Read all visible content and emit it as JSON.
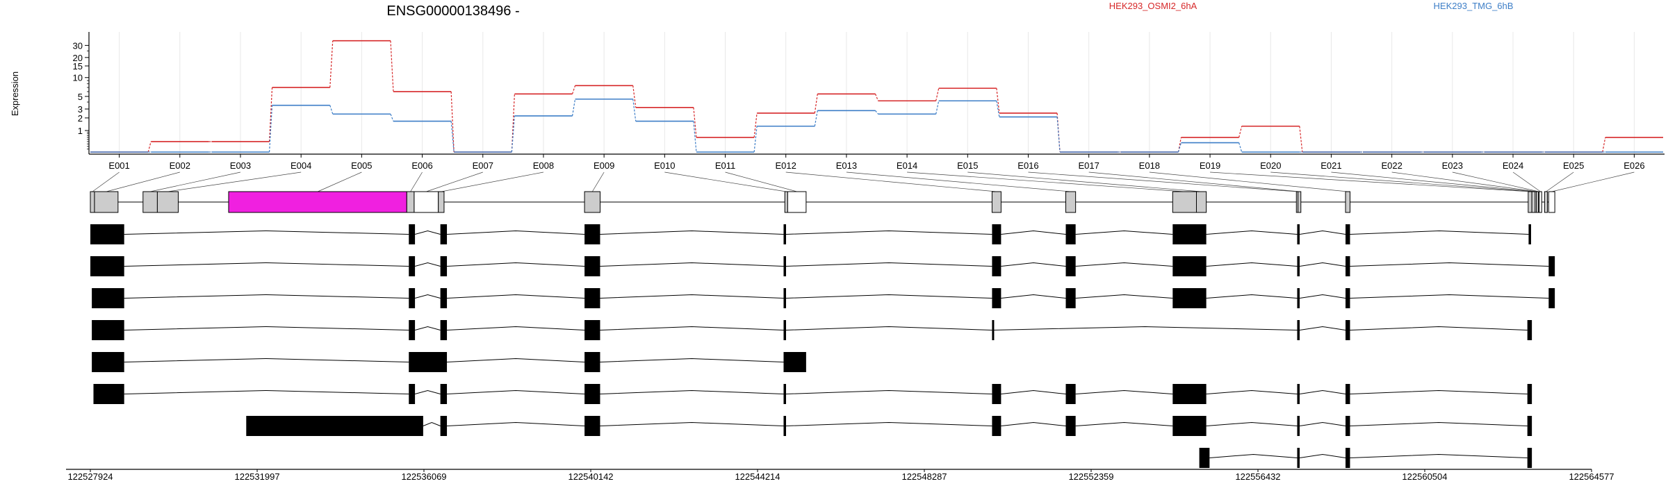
{
  "chart_data": {
    "type": "line",
    "title": "ENSG00000138496 -",
    "ylabel": "Expression",
    "y_scale": "log",
    "y_ticks": [
      "1",
      "2",
      "3",
      "5",
      "10",
      "15",
      "20",
      "30"
    ],
    "grid": true,
    "legend": "top-right",
    "series": [
      {
        "name": "HEK293_OSMI2_6hA",
        "color": "#d62728",
        "values": [
          0,
          0.4,
          0.4,
          7,
          35,
          6,
          0,
          5.5,
          7.5,
          3.2,
          0.6,
          2.5,
          5.5,
          4.2,
          6.8,
          2.5,
          0,
          0,
          0.6,
          1.3,
          0,
          0,
          0,
          0,
          0,
          0.6
        ]
      },
      {
        "name": "HEK293_TMG_6hB",
        "color": "#3d7ec7",
        "values": [
          0,
          0,
          0,
          3.5,
          2.4,
          1.7,
          0,
          2.2,
          4.5,
          1.7,
          0,
          1.3,
          2.8,
          2.4,
          4.2,
          2.1,
          0,
          0,
          0.35,
          0,
          0,
          0,
          0,
          0,
          0,
          0
        ]
      }
    ],
    "exons": [
      {
        "id": "E001",
        "start": 122527924,
        "end": 122528025
      },
      {
        "id": "E002",
        "start": 122528025,
        "end": 122528600
      },
      {
        "id": "E003",
        "start": 122529210,
        "end": 122529560
      },
      {
        "id": "E004",
        "start": 122529560,
        "end": 122530070
      },
      {
        "id": "E005",
        "start": 122531300,
        "end": 122535650,
        "highlight": true
      },
      {
        "id": "E006",
        "start": 122535650,
        "end": 122535830
      },
      {
        "id": "E007",
        "start": 122535830,
        "end": 122536420
      },
      {
        "id": "E008",
        "start": 122536420,
        "end": 122536560
      },
      {
        "id": "E009",
        "start": 122539990,
        "end": 122540370
      },
      {
        "id": "E010",
        "start": 122544880,
        "end": 122544950
      },
      {
        "id": "E011",
        "start": 122544950,
        "end": 122545400
      },
      {
        "id": "E012",
        "start": 122549940,
        "end": 122550160
      },
      {
        "id": "E013",
        "start": 122551740,
        "end": 122551980
      },
      {
        "id": "E014",
        "start": 122554350,
        "end": 122554930
      },
      {
        "id": "E015",
        "start": 122554930,
        "end": 122555170
      },
      {
        "id": "E016",
        "start": 122557370,
        "end": 122557410
      },
      {
        "id": "E017",
        "start": 122557410,
        "end": 122557480
      },
      {
        "id": "E018",
        "start": 122558570,
        "end": 122558680
      },
      {
        "id": "E019",
        "start": 122563030,
        "end": 122563120
      },
      {
        "id": "E020",
        "start": 122563120,
        "end": 122563200
      },
      {
        "id": "E021",
        "start": 122563200,
        "end": 122563230
      },
      {
        "id": "E022",
        "start": 122563230,
        "end": 122563280
      },
      {
        "id": "E023",
        "start": 122563280,
        "end": 122563300
      },
      {
        "id": "E024",
        "start": 122563300,
        "end": 122563360
      },
      {
        "id": "E025",
        "start": 122563430,
        "end": 122563500
      },
      {
        "id": "E026",
        "start": 122563530,
        "end": 122563680
      }
    ],
    "transcripts": [
      [
        [
          122527924,
          122528750
        ],
        [
          122535700,
          122535850
        ],
        [
          122536470,
          122536630
        ],
        [
          122539990,
          122540370
        ],
        [
          122544850,
          122544910
        ],
        [
          122549940,
          122550160
        ],
        [
          122551740,
          122551980
        ],
        [
          122554350,
          122555170
        ],
        [
          122557390,
          122557450
        ],
        [
          122558570,
          122558680
        ],
        [
          122563040,
          122563100
        ]
      ],
      [
        [
          122527924,
          122528750
        ],
        [
          122535700,
          122535850
        ],
        [
          122536470,
          122536630
        ],
        [
          122539990,
          122540370
        ],
        [
          122544850,
          122544910
        ],
        [
          122549940,
          122550160
        ],
        [
          122551740,
          122551980
        ],
        [
          122554350,
          122555170
        ],
        [
          122557390,
          122557450
        ],
        [
          122558570,
          122558680
        ],
        [
          122563530,
          122563680
        ]
      ],
      [
        [
          122527960,
          122528750
        ],
        [
          122535700,
          122535850
        ],
        [
          122536470,
          122536630
        ],
        [
          122539990,
          122540370
        ],
        [
          122544850,
          122544910
        ],
        [
          122549940,
          122550160
        ],
        [
          122551740,
          122551980
        ],
        [
          122554350,
          122555170
        ],
        [
          122557390,
          122557450
        ],
        [
          122558570,
          122558680
        ],
        [
          122563530,
          122563680
        ]
      ],
      [
        [
          122527960,
          122528750
        ],
        [
          122535700,
          122535850
        ],
        [
          122536470,
          122536630
        ],
        [
          122539990,
          122540370
        ],
        [
          122544850,
          122544910
        ],
        [
          122549940,
          122549960
        ],
        [
          122557390,
          122557450
        ],
        [
          122558570,
          122558680
        ],
        [
          122563010,
          122563120
        ]
      ],
      [
        [
          122527960,
          122528750
        ],
        [
          122535700,
          122536630
        ],
        [
          122539990,
          122540370
        ],
        [
          122544850,
          122545400
        ]
      ],
      [
        [
          122528000,
          122528750
        ],
        [
          122535700,
          122535850
        ],
        [
          122536470,
          122536630
        ],
        [
          122539990,
          122540370
        ],
        [
          122544850,
          122544910
        ],
        [
          122549940,
          122550160
        ],
        [
          122551740,
          122551980
        ],
        [
          122554350,
          122555170
        ],
        [
          122557390,
          122557450
        ],
        [
          122558570,
          122558680
        ],
        [
          122563010,
          122563120
        ]
      ],
      [
        [
          122531730,
          122536050
        ],
        [
          122536470,
          122536630
        ],
        [
          122539990,
          122540370
        ],
        [
          122544850,
          122544910
        ],
        [
          122549940,
          122550160
        ],
        [
          122551740,
          122551980
        ],
        [
          122554350,
          122555170
        ],
        [
          122557390,
          122557450
        ],
        [
          122558570,
          122558680
        ],
        [
          122563010,
          122563120
        ]
      ],
      [
        [
          122555000,
          122555250
        ],
        [
          122557390,
          122557450
        ],
        [
          122558570,
          122558680
        ],
        [
          122563010,
          122563120
        ]
      ]
    ],
    "genomic_ticks": [
      122527924,
      122531997,
      122536069,
      122540142,
      122544214,
      122548287,
      122552359,
      122556432,
      122560504,
      122564577
    ]
  }
}
